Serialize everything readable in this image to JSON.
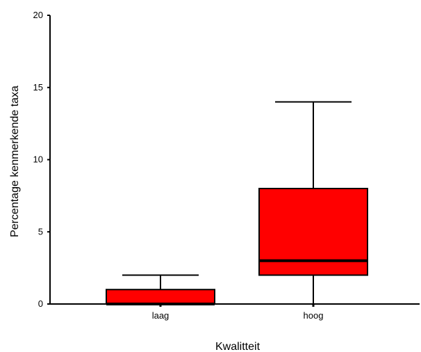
{
  "chart_data": {
    "type": "box",
    "xlabel": "Kwalitteit",
    "ylabel": "Percentage kenmerkende taxa",
    "ylim": [
      0,
      20
    ],
    "yticks": [
      "0",
      "5",
      "10",
      "15",
      "20"
    ],
    "categories": [
      "laag",
      "hoog"
    ],
    "boxes": [
      {
        "category": "laag",
        "whisker_low": 0,
        "q1": 0,
        "median": 0,
        "q3": 1,
        "whisker_high": 2
      },
      {
        "category": "hoog",
        "whisker_low": 0,
        "q1": 2,
        "median": 3,
        "q3": 8,
        "whisker_high": 14
      }
    ],
    "colors": {
      "box_fill": "#ff0000",
      "line": "#000000"
    },
    "grid": false,
    "legend": false
  }
}
